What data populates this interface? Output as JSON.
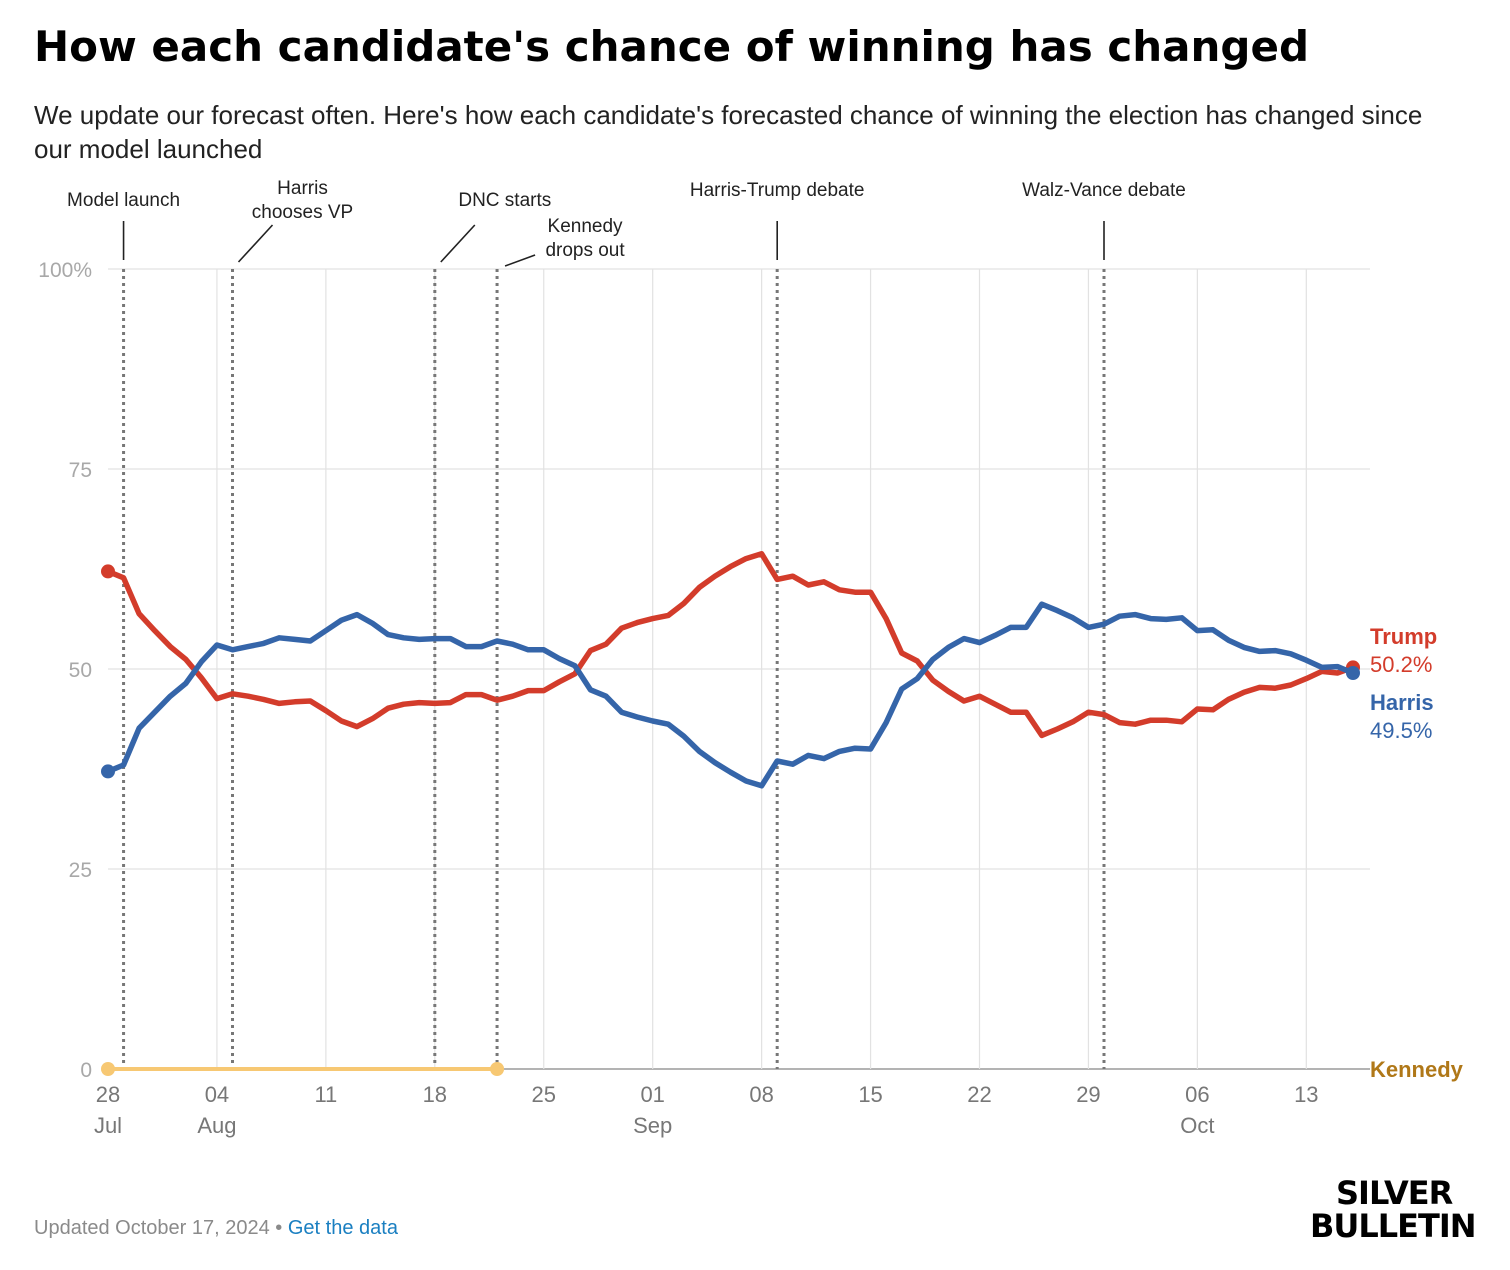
{
  "header": {
    "title": "How each candidate's chance of winning has changed",
    "subtitle": "We update our forecast often. Here's how each candidate's forecasted chance of winning the election has changed since our model launched"
  },
  "footer": {
    "updated": "Updated October 17, 2024",
    "separator": " • ",
    "link_label": "Get the data"
  },
  "logo": {
    "line1": "SILVER",
    "line2": "BULLETIN"
  },
  "chart_data": {
    "type": "line",
    "x_start": "2024-07-28",
    "x_range_days": [
      0,
      80
    ],
    "ylim": [
      0,
      100
    ],
    "y_ticks": [
      {
        "value": 0,
        "label": "0"
      },
      {
        "value": 25,
        "label": "25"
      },
      {
        "value": 50,
        "label": "50"
      },
      {
        "value": 75,
        "label": "75"
      },
      {
        "value": 100,
        "label": "100%"
      }
    ],
    "x_ticks": [
      {
        "day": 0,
        "label": "28",
        "sublabel": "Jul"
      },
      {
        "day": 7,
        "label": "04",
        "sublabel": "Aug"
      },
      {
        "day": 14,
        "label": "11",
        "sublabel": ""
      },
      {
        "day": 21,
        "label": "18",
        "sublabel": ""
      },
      {
        "day": 28,
        "label": "25",
        "sublabel": ""
      },
      {
        "day": 35,
        "label": "01",
        "sublabel": "Sep"
      },
      {
        "day": 42,
        "label": "08",
        "sublabel": ""
      },
      {
        "day": 49,
        "label": "15",
        "sublabel": ""
      },
      {
        "day": 56,
        "label": "22",
        "sublabel": ""
      },
      {
        "day": 63,
        "label": "29",
        "sublabel": ""
      },
      {
        "day": 70,
        "label": "06",
        "sublabel": "Oct"
      },
      {
        "day": 77,
        "label": "13",
        "sublabel": ""
      }
    ],
    "grid": true,
    "events": [
      {
        "day": 1,
        "label_lines": [
          "Model launch"
        ],
        "label_dx": 0,
        "label_dy": 0,
        "leader": "vertical"
      },
      {
        "day": 8,
        "label_lines": [
          "Harris",
          "chooses VP"
        ],
        "label_dx": 0,
        "label_dy": 0,
        "leader": "diagonal"
      },
      {
        "day": 21,
        "label_lines": [
          "DNC starts"
        ],
        "label_dx": 0,
        "label_dy": 0,
        "leader": "diagonal"
      },
      {
        "day": 25,
        "label_lines": [
          "Kennedy",
          "drops out"
        ],
        "label_dx": 0,
        "label_dy": 0,
        "leader": "diagonal-short"
      },
      {
        "day": 43,
        "label_lines": [
          "Harris-Trump debate"
        ],
        "label_dx": 0,
        "label_dy": 0,
        "leader": "vertical"
      },
      {
        "day": 64,
        "label_lines": [
          "Walz-Vance debate"
        ],
        "label_dx": 0,
        "label_dy": 0,
        "leader": "vertical"
      }
    ],
    "series": [
      {
        "name": "Trump",
        "color": "#d33c2b",
        "end_label": "50.2%",
        "values": [
          [
            0,
            62.2
          ],
          [
            1,
            61.4
          ],
          [
            2,
            56.9
          ],
          [
            3,
            54.8
          ],
          [
            4,
            52.8
          ],
          [
            5,
            51.2
          ],
          [
            6,
            48.9
          ],
          [
            7,
            46.3
          ],
          [
            8,
            46.9
          ],
          [
            9,
            46.6
          ],
          [
            10,
            46.2
          ],
          [
            11,
            45.7
          ],
          [
            12,
            45.9
          ],
          [
            13,
            46.0
          ],
          [
            14,
            44.8
          ],
          [
            15,
            43.5
          ],
          [
            16,
            42.8
          ],
          [
            17,
            43.8
          ],
          [
            18,
            45.1
          ],
          [
            19,
            45.6
          ],
          [
            20,
            45.8
          ],
          [
            21,
            45.7
          ],
          [
            22,
            45.8
          ],
          [
            23,
            46.8
          ],
          [
            24,
            46.8
          ],
          [
            25,
            46.1
          ],
          [
            26,
            46.6
          ],
          [
            27,
            47.3
          ],
          [
            28,
            47.3
          ],
          [
            29,
            48.4
          ],
          [
            30,
            49.4
          ],
          [
            31,
            52.3
          ],
          [
            32,
            53.1
          ],
          [
            33,
            55.1
          ],
          [
            34,
            55.8
          ],
          [
            35,
            56.3
          ],
          [
            36,
            56.7
          ],
          [
            37,
            58.2
          ],
          [
            38,
            60.2
          ],
          [
            39,
            61.6
          ],
          [
            40,
            62.8
          ],
          [
            41,
            63.8
          ],
          [
            42,
            64.4
          ],
          [
            43,
            61.2
          ],
          [
            44,
            61.6
          ],
          [
            45,
            60.5
          ],
          [
            46,
            60.9
          ],
          [
            47,
            59.9
          ],
          [
            48,
            59.6
          ],
          [
            49,
            59.6
          ],
          [
            50,
            56.3
          ],
          [
            51,
            52.0
          ],
          [
            52,
            51.0
          ],
          [
            53,
            48.6
          ],
          [
            54,
            47.2
          ],
          [
            55,
            46.0
          ],
          [
            56,
            46.6
          ],
          [
            57,
            45.6
          ],
          [
            58,
            44.6
          ],
          [
            59,
            44.6
          ],
          [
            60,
            41.7
          ],
          [
            61,
            42.5
          ],
          [
            62,
            43.4
          ],
          [
            63,
            44.6
          ],
          [
            64,
            44.3
          ],
          [
            65,
            43.3
          ],
          [
            66,
            43.1
          ],
          [
            67,
            43.6
          ],
          [
            68,
            43.6
          ],
          [
            69,
            43.4
          ],
          [
            70,
            45.0
          ],
          [
            71,
            44.9
          ],
          [
            72,
            46.2
          ],
          [
            73,
            47.1
          ],
          [
            74,
            47.7
          ],
          [
            75,
            47.6
          ],
          [
            76,
            48.0
          ],
          [
            77,
            48.8
          ],
          [
            78,
            49.7
          ],
          [
            79,
            49.5
          ],
          [
            80,
            50.2
          ]
        ]
      },
      {
        "name": "Harris",
        "color": "#3565a9",
        "end_label": "49.5%",
        "values": [
          [
            0,
            37.2
          ],
          [
            1,
            38.0
          ],
          [
            2,
            42.6
          ],
          [
            3,
            44.6
          ],
          [
            4,
            46.6
          ],
          [
            5,
            48.2
          ],
          [
            6,
            50.9
          ],
          [
            7,
            53.0
          ],
          [
            8,
            52.4
          ],
          [
            9,
            52.8
          ],
          [
            10,
            53.2
          ],
          [
            11,
            53.9
          ],
          [
            12,
            53.7
          ],
          [
            13,
            53.5
          ],
          [
            14,
            54.8
          ],
          [
            15,
            56.1
          ],
          [
            16,
            56.8
          ],
          [
            17,
            55.7
          ],
          [
            18,
            54.3
          ],
          [
            19,
            53.9
          ],
          [
            20,
            53.7
          ],
          [
            21,
            53.8
          ],
          [
            22,
            53.8
          ],
          [
            23,
            52.8
          ],
          [
            24,
            52.8
          ],
          [
            25,
            53.5
          ],
          [
            26,
            53.1
          ],
          [
            27,
            52.4
          ],
          [
            28,
            52.4
          ],
          [
            29,
            51.3
          ],
          [
            30,
            50.4
          ],
          [
            31,
            47.4
          ],
          [
            32,
            46.6
          ],
          [
            33,
            44.6
          ],
          [
            34,
            44.0
          ],
          [
            35,
            43.5
          ],
          [
            36,
            43.1
          ],
          [
            37,
            41.6
          ],
          [
            38,
            39.7
          ],
          [
            39,
            38.3
          ],
          [
            40,
            37.1
          ],
          [
            41,
            36.0
          ],
          [
            42,
            35.4
          ],
          [
            43,
            38.5
          ],
          [
            44,
            38.1
          ],
          [
            45,
            39.2
          ],
          [
            46,
            38.8
          ],
          [
            47,
            39.7
          ],
          [
            48,
            40.1
          ],
          [
            49,
            40.0
          ],
          [
            50,
            43.3
          ],
          [
            51,
            47.5
          ],
          [
            52,
            48.8
          ],
          [
            53,
            51.2
          ],
          [
            54,
            52.7
          ],
          [
            55,
            53.8
          ],
          [
            56,
            53.3
          ],
          [
            57,
            54.2
          ],
          [
            58,
            55.2
          ],
          [
            59,
            55.2
          ],
          [
            60,
            58.1
          ],
          [
            61,
            57.3
          ],
          [
            62,
            56.4
          ],
          [
            63,
            55.2
          ],
          [
            64,
            55.6
          ],
          [
            65,
            56.6
          ],
          [
            66,
            56.8
          ],
          [
            67,
            56.3
          ],
          [
            68,
            56.2
          ],
          [
            69,
            56.4
          ],
          [
            70,
            54.8
          ],
          [
            71,
            54.9
          ],
          [
            72,
            53.6
          ],
          [
            73,
            52.7
          ],
          [
            74,
            52.2
          ],
          [
            75,
            52.3
          ],
          [
            76,
            51.9
          ],
          [
            77,
            51.1
          ],
          [
            78,
            50.2
          ],
          [
            79,
            50.3
          ],
          [
            80,
            49.5
          ]
        ]
      },
      {
        "name": "Kennedy",
        "color": "#f7c873",
        "label_color": "#b07818",
        "end_label": "",
        "values": [
          [
            0,
            0
          ],
          [
            25,
            0
          ]
        ]
      }
    ]
  }
}
